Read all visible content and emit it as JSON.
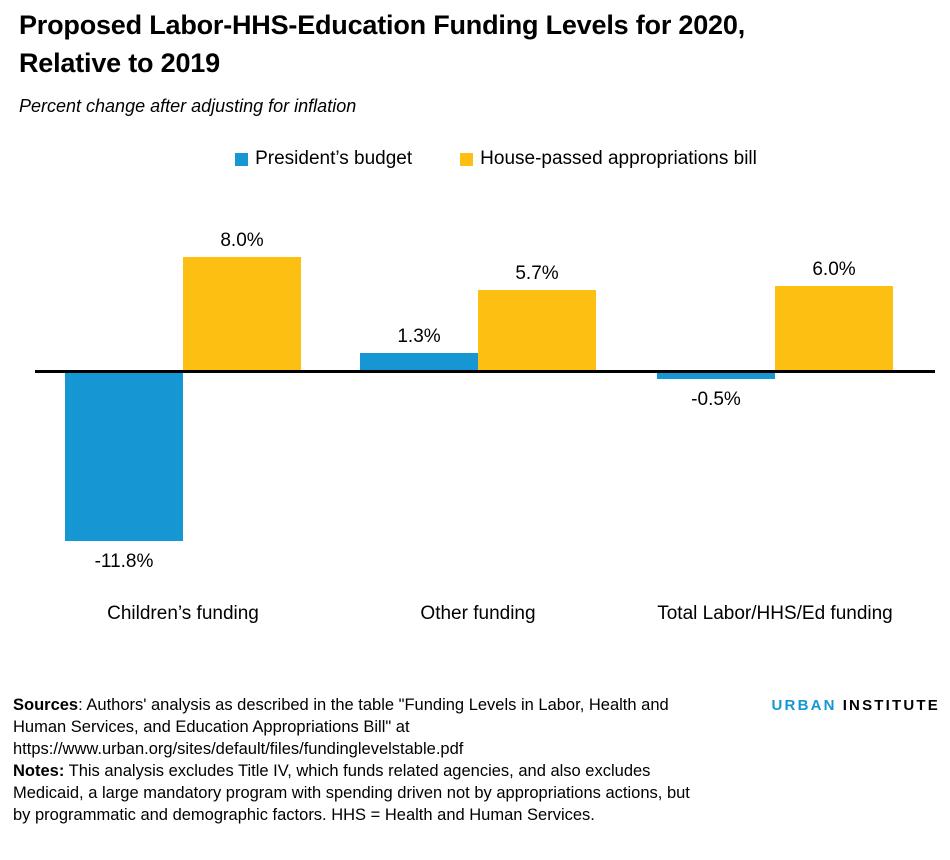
{
  "header": {
    "title_line1": "Proposed Labor-HHS-Education Funding Levels for 2020,",
    "title_line2": "Relative to 2019",
    "subtitle": "Percent change after adjusting for inflation"
  },
  "chart_data": {
    "type": "bar",
    "categories": [
      "Children’s funding",
      "Other funding",
      "Total Labor/HHS/Ed funding"
    ],
    "series": [
      {
        "name": "President’s budget",
        "color": "#1696d2",
        "values": [
          -11.8,
          1.3,
          -0.5
        ],
        "value_labels": [
          "-11.8%",
          "1.3%",
          "-0.5%"
        ]
      },
      {
        "name": "House-passed appropriations bill",
        "color": "#fdbf11",
        "values": [
          8.0,
          5.7,
          6.0
        ],
        "value_labels": [
          "8.0%",
          "5.7%",
          "6.0%"
        ]
      }
    ],
    "ylabel": "Percent change after adjusting for inflation",
    "ylim": [
      -13,
      9
    ],
    "grid": false,
    "legend_position": "top",
    "axis_color": "#000000",
    "value_labels_shown": true
  },
  "footer": {
    "sources_label": "Sources",
    "sources_text": ": Authors' analysis as described in the table \"Funding Levels in Labor, Health and Human Services, and Education Appropriations Bill\" at https://www.urban.org/sites/default/files/fundinglevelstable.pdf",
    "notes_label": "Notes:",
    "notes_text": " This analysis excludes Title IV, which funds related agencies, and also excludes Medicaid, a large mandatory program with spending driven not by appropriations actions, but by programmatic and demographic factors. HHS = Health and Human Services."
  },
  "logo": {
    "part1": "URBAN",
    "part2": "INSTITUTE",
    "part1_color": "#1696d2",
    "part2_color": "#000000"
  }
}
